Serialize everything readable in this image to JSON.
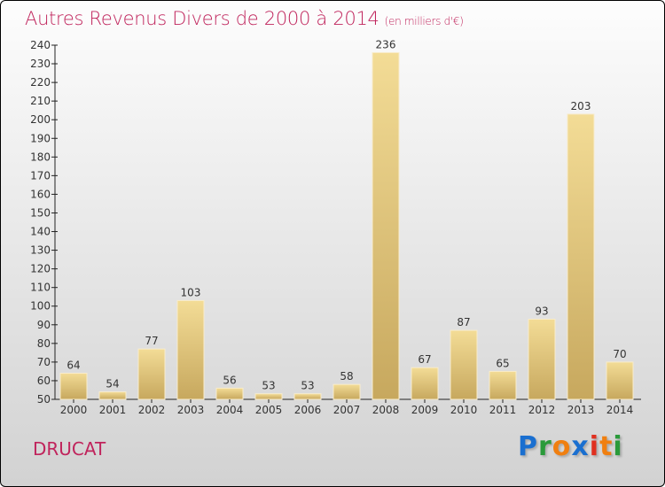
{
  "chart_data": {
    "type": "bar",
    "title": "Autres Revenus Divers de 2000 à 2014",
    "subtitle": "(en milliers d'€)",
    "categories": [
      "2000",
      "2001",
      "2002",
      "2003",
      "2004",
      "2005",
      "2006",
      "2007",
      "2008",
      "2009",
      "2010",
      "2011",
      "2012",
      "2013",
      "2014"
    ],
    "values": [
      64,
      54,
      77,
      103,
      56,
      53,
      53,
      58,
      236,
      67,
      87,
      65,
      93,
      203,
      70
    ],
    "ylim": [
      50,
      240
    ],
    "yticks": [
      50,
      60,
      70,
      80,
      90,
      100,
      110,
      120,
      130,
      140,
      150,
      160,
      170,
      180,
      190,
      200,
      210,
      220,
      230,
      240
    ],
    "xlabel": "",
    "ylabel": "",
    "grid": false
  },
  "location": "DRUCAT",
  "logo": "Proxiti",
  "colors": {
    "title": "#c0245c",
    "bar_top": "#f3dc96",
    "bar_bottom": "#c7a85e"
  }
}
